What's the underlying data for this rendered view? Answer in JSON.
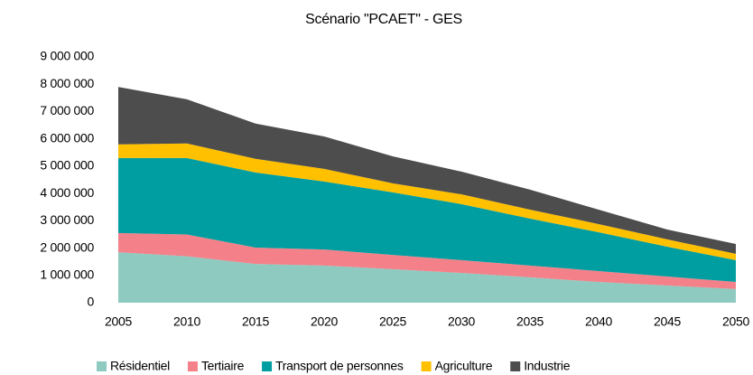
{
  "chart_data": {
    "type": "stacked_area",
    "title": "Scénario \"PCAET\" - GES",
    "x": [
      2005,
      2010,
      2015,
      2020,
      2025,
      2030,
      2035,
      2040,
      2045,
      2050
    ],
    "series": [
      {
        "name": "Résidentiel",
        "color": "#8ecac0",
        "values": [
          1850000,
          1700000,
          1420000,
          1360000,
          1230000,
          1090000,
          930000,
          760000,
          630000,
          500000
        ]
      },
      {
        "name": "Tertiaire",
        "color": "#f4808a",
        "values": [
          700000,
          800000,
          600000,
          590000,
          520000,
          470000,
          430000,
          400000,
          330000,
          260000
        ]
      },
      {
        "name": "Transport de personnes",
        "color": "#009ea0",
        "values": [
          2750000,
          2800000,
          2750000,
          2490000,
          2290000,
          2050000,
          1720000,
          1420000,
          1090000,
          800000
        ]
      },
      {
        "name": "Agriculture",
        "color": "#ffc000",
        "values": [
          500000,
          530000,
          500000,
          460000,
          330000,
          360000,
          330000,
          300000,
          270000,
          230000
        ]
      },
      {
        "name": "Industrie",
        "color": "#4d4d4d",
        "values": [
          2100000,
          1620000,
          1290000,
          1190000,
          990000,
          830000,
          730000,
          530000,
          360000,
          360000
        ]
      }
    ],
    "xlim": [
      2005,
      2050
    ],
    "xticks": [
      2005,
      2010,
      2015,
      2020,
      2025,
      2030,
      2035,
      2040,
      2045,
      2050
    ],
    "ylim": [
      0,
      9000000
    ],
    "yticks": [
      0,
      {
        "value": 1000000,
        "label": "1 000 000"
      },
      {
        "value": 2000000,
        "label": "2 000 000"
      },
      {
        "value": 3000000,
        "label": "3 000 000"
      },
      {
        "value": 4000000,
        "label": "4 000 000"
      },
      {
        "value": 5000000,
        "label": "5 000 000"
      },
      {
        "value": 6000000,
        "label": "6 000 000"
      },
      {
        "value": 7000000,
        "label": "7 000 000"
      },
      {
        "value": 8000000,
        "label": "8 000 000"
      },
      {
        "value": 9000000,
        "label": "9 000 000"
      }
    ],
    "grid": false,
    "legend": "bottom"
  }
}
